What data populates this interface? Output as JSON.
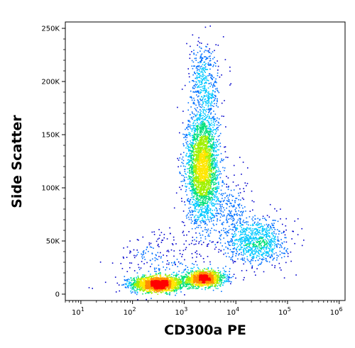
{
  "chart_data": {
    "type": "scatter",
    "style": "density dot plot (flow cytometry)",
    "xlabel": "CD300a PE",
    "ylabel": "Side Scatter",
    "x_scale": "log",
    "xlim": [
      5,
      1300000
    ],
    "ylim": [
      -6000,
      256000
    ],
    "x_ticks": [
      {
        "value": 10,
        "base": "10",
        "exp": "1"
      },
      {
        "value": 100,
        "base": "10",
        "exp": "2"
      },
      {
        "value": 1000,
        "base": "10",
        "exp": "3"
      },
      {
        "value": 10000,
        "base": "10",
        "exp": "4"
      },
      {
        "value": 100000,
        "base": "10",
        "exp": "5"
      },
      {
        "value": 1000000,
        "base": "10",
        "exp": "6"
      }
    ],
    "y_ticks": [
      {
        "value": 0,
        "label": "0"
      },
      {
        "value": 50000,
        "label": "50K"
      },
      {
        "value": 100000,
        "label": "100K"
      },
      {
        "value": 150000,
        "label": "150K"
      },
      {
        "value": 200000,
        "label": "200K"
      },
      {
        "value": 250000,
        "label": "250K"
      }
    ],
    "populations": [
      {
        "center_x": 300,
        "center_y": 10000,
        "spread_log_x": 0.25,
        "spread_y": 3500,
        "points": 1800
      },
      {
        "center_x": 2400,
        "center_y": 15000,
        "spread_log_x": 0.2,
        "spread_y": 3500,
        "points": 1300
      },
      {
        "center_x": 2200,
        "center_y": 120000,
        "spread_log_x": 0.15,
        "spread_y": 26000,
        "points": 2800
      },
      {
        "center_x": 2500,
        "center_y": 200000,
        "spread_log_x": 0.15,
        "spread_y": 20000,
        "points": 450
      },
      {
        "center_x": 25000,
        "center_y": 50000,
        "spread_log_x": 0.28,
        "spread_y": 11000,
        "points": 850
      },
      {
        "center_x": 8000,
        "center_y": 80000,
        "spread_log_x": 0.2,
        "spread_y": 18000,
        "points": 250
      },
      {
        "center_x": 400,
        "center_y": 30000,
        "spread_log_x": 0.45,
        "spread_y": 15000,
        "points": 250
      }
    ],
    "density_colors": [
      "#0000cc",
      "#0070ff",
      "#00c8ff",
      "#00e07a",
      "#a0f000",
      "#ffe600",
      "#ff8c00",
      "#ff0000"
    ],
    "grid": false,
    "legend": "none"
  }
}
